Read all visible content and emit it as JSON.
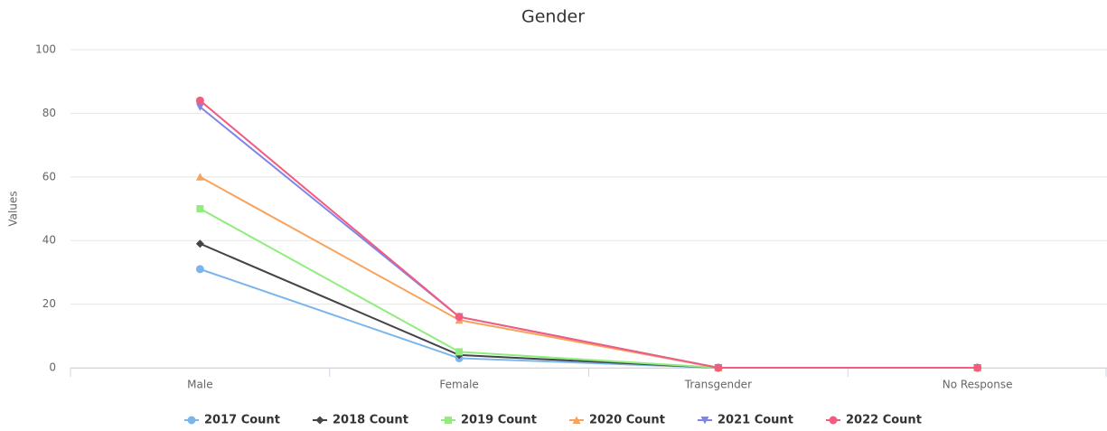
{
  "chart_data": {
    "type": "line",
    "title": "Gender",
    "y_label": "Values",
    "categories": [
      "Male",
      "Female",
      "Transgender",
      "No Response"
    ],
    "series": [
      {
        "name": "2017 Count",
        "color": "#7cb5ec",
        "marker": "circle",
        "values": [
          31,
          3,
          0,
          0
        ]
      },
      {
        "name": "2018 Count",
        "color": "#434348",
        "marker": "diamond",
        "values": [
          39,
          4,
          0,
          0
        ]
      },
      {
        "name": "2019 Count",
        "color": "#90ed7d",
        "marker": "square",
        "values": [
          50,
          5,
          0,
          0
        ]
      },
      {
        "name": "2020 Count",
        "color": "#f7a35c",
        "marker": "triangle",
        "values": [
          60,
          15,
          0,
          0
        ]
      },
      {
        "name": "2021 Count",
        "color": "#8085e9",
        "marker": "triangle-down",
        "values": [
          82,
          16,
          0,
          0
        ]
      },
      {
        "name": "2022 Count",
        "color": "#f15c80",
        "marker": "circle",
        "values": [
          84,
          16,
          0,
          0
        ]
      }
    ],
    "ylim": [
      0,
      100
    ],
    "yticks": [
      0,
      20,
      40,
      60,
      80,
      100
    ],
    "grid": true,
    "legend": "bottom"
  }
}
